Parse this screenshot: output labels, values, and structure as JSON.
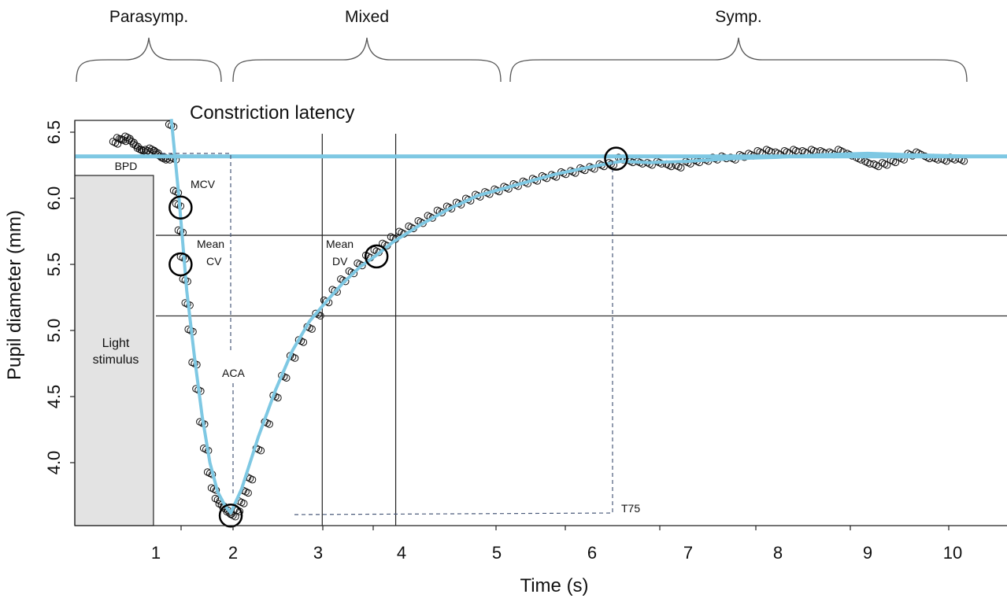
{
  "phases": [
    {
      "label": "Parasymp.",
      "x_start": 0.25,
      "x_end": 1.8
    },
    {
      "label": "Mixed",
      "x_start": 2.0,
      "x_end": 5.4
    },
    {
      "label": "Symp.",
      "x_start": 5.6,
      "x_end": 10.15
    }
  ],
  "annotations": {
    "constriction_latency": "Constriction latency",
    "bpd": "BPD",
    "mcv": "MCV",
    "mean_cv": [
      "Mean",
      "CV"
    ],
    "mean_dv": [
      "Mean",
      "DV"
    ],
    "aca": "ACA",
    "t75": "T75",
    "light_stimulus": [
      "Light",
      "stimulus"
    ]
  },
  "colors": {
    "fit_line": "#7ec8e3",
    "markers": "#111111",
    "stimulus_fill": "#e3e3e3"
  },
  "chart_data": {
    "type": "scatter",
    "xlabel": "Time (s)",
    "ylabel": "Pupil diameter (mm)",
    "x_ticks": [
      1,
      2,
      3,
      4,
      5,
      6,
      7,
      8,
      9,
      10
    ],
    "y_ticks": [
      "4.0",
      "4.5",
      "5.0",
      "5.5",
      "6.0",
      "6.5"
    ],
    "xlim": [
      0,
      10.6
    ],
    "ylim": [
      3.5,
      6.6
    ],
    "baseline_pupil_diameter": 6.4,
    "light_stimulus": {
      "x_start": 0.0,
      "x_end": 0.97
    },
    "horizontal_reference_lines": [
      5.72,
      5.11
    ],
    "vertical_reference_lines": [
      3.05,
      3.93
    ],
    "minimum": {
      "x": 1.97,
      "y": 3.6
    },
    "circled_points": [
      {
        "label": "MCV",
        "x": 1.32,
        "y": 5.93
      },
      {
        "label": "Mean CV",
        "x": 1.32,
        "y": 5.5
      },
      {
        "label": "minimum",
        "x": 1.97,
        "y": 3.6
      },
      {
        "label": "Mean DV",
        "x": 3.7,
        "y": 5.56
      },
      {
        "label": "T75",
        "x": 6.25,
        "y": 6.3
      }
    ],
    "fitted_curve": {
      "x": [
        1.2,
        1.25,
        1.3,
        1.35,
        1.4,
        1.5,
        1.6,
        1.7,
        1.8,
        1.9,
        1.97,
        2.1,
        2.3,
        2.5,
        2.7,
        2.9,
        3.1,
        3.3,
        3.5,
        3.7,
        3.9,
        4.2,
        4.5,
        4.8,
        5.2,
        5.6,
        6.0,
        6.3,
        6.6,
        7.0,
        7.5,
        8.0,
        8.5,
        9.0,
        9.5,
        10.1
      ],
      "y": [
        6.6,
        6.3,
        6.0,
        5.65,
        5.3,
        4.8,
        4.35,
        4.0,
        3.78,
        3.67,
        3.62,
        3.8,
        4.2,
        4.55,
        4.85,
        5.07,
        5.22,
        5.36,
        5.48,
        5.57,
        5.67,
        5.8,
        5.92,
        6.02,
        6.1,
        6.18,
        6.24,
        6.28,
        6.27,
        6.28,
        6.3,
        6.31,
        6.33,
        6.34,
        6.33,
        6.32
      ]
    },
    "points": {
      "x": [
        0.5,
        0.55,
        0.6,
        0.65,
        0.7,
        0.75,
        0.8,
        0.85,
        0.9,
        0.95,
        1.0,
        1.05,
        1.1,
        1.15,
        1.2,
        1.23,
        1.26,
        1.29,
        1.32,
        1.35,
        1.38,
        1.41,
        1.45,
        1.5,
        1.55,
        1.6,
        1.65,
        1.7,
        1.75,
        1.8,
        1.85,
        1.9,
        1.95,
        2.0,
        2.05,
        2.1,
        2.15,
        2.2,
        2.3,
        2.4,
        2.5,
        2.6,
        2.7,
        2.8,
        2.9,
        3.0,
        3.1,
        3.2,
        3.3,
        3.4,
        3.5,
        3.6,
        3.7,
        3.8,
        3.9,
        4.0,
        4.1,
        4.2,
        4.3,
        4.4,
        4.5,
        4.6,
        4.7,
        4.8,
        4.9,
        5.0,
        5.1,
        5.2,
        5.3,
        5.4,
        5.5,
        5.6,
        5.7,
        5.8,
        5.9,
        6.0,
        6.1,
        6.2,
        6.3,
        6.4,
        6.5,
        6.6,
        6.7,
        6.8,
        6.9,
        7.0,
        7.1,
        7.2,
        7.3,
        7.4,
        7.5,
        7.6,
        7.7,
        7.8,
        7.9,
        8.0,
        8.1,
        8.2,
        8.3,
        8.4,
        8.5,
        8.6,
        8.7,
        8.8,
        8.9,
        9.0,
        9.1,
        9.2,
        9.3,
        9.4,
        9.5,
        9.6,
        9.7,
        9.8,
        9.9,
        10.0,
        10.1
      ],
      "y": [
        6.42,
        6.45,
        6.44,
        6.46,
        6.43,
        6.4,
        6.37,
        6.36,
        6.36,
        6.37,
        6.35,
        6.32,
        6.3,
        6.3,
        6.55,
        6.3,
        6.05,
        5.95,
        5.75,
        5.55,
        5.38,
        5.2,
        5.0,
        4.75,
        4.55,
        4.3,
        4.1,
        3.92,
        3.8,
        3.72,
        3.68,
        3.65,
        3.62,
        3.6,
        3.64,
        3.7,
        3.78,
        3.88,
        4.1,
        4.3,
        4.5,
        4.65,
        4.8,
        4.92,
        5.02,
        5.12,
        5.22,
        5.3,
        5.38,
        5.44,
        5.5,
        5.56,
        5.6,
        5.65,
        5.7,
        5.74,
        5.78,
        5.82,
        5.86,
        5.9,
        5.93,
        5.96,
        5.99,
        6.02,
        6.04,
        6.06,
        6.08,
        6.1,
        6.12,
        6.14,
        6.16,
        6.17,
        6.19,
        6.2,
        6.22,
        6.23,
        6.25,
        6.26,
        6.3,
        6.28,
        6.27,
        6.26,
        6.27,
        6.25,
        6.24,
        6.27,
        6.28,
        6.29,
        6.3,
        6.31,
        6.3,
        6.32,
        6.33,
        6.35,
        6.36,
        6.34,
        6.35,
        6.36,
        6.35,
        6.36,
        6.35,
        6.34,
        6.36,
        6.33,
        6.3,
        6.27,
        6.25,
        6.26,
        6.28,
        6.3,
        6.33,
        6.34,
        6.31,
        6.3,
        6.29,
        6.3,
        6.29
      ]
    }
  }
}
